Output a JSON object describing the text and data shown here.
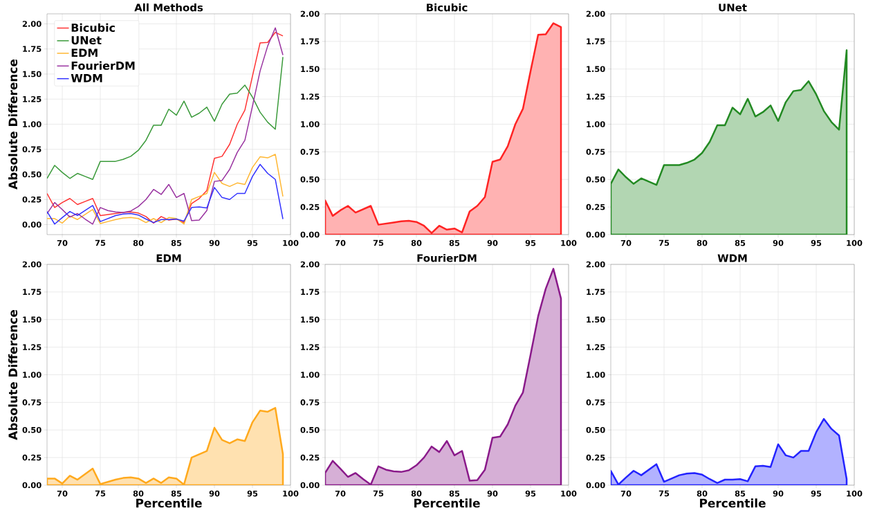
{
  "chart_data": [
    {
      "type": "line",
      "title": "All Methods",
      "ylabel": "Absolute Difference",
      "x": [
        68,
        69,
        70,
        71,
        72,
        73,
        74,
        75,
        76,
        77,
        78,
        79,
        80,
        81,
        82,
        83,
        84,
        85,
        86,
        87,
        88,
        89,
        90,
        91,
        92,
        93,
        94,
        95,
        96,
        97,
        98,
        99
      ],
      "xlim": [
        68,
        100
      ],
      "xticks": [
        70,
        75,
        80,
        85,
        90,
        95,
        100
      ],
      "ylim": [
        -0.1,
        2.1
      ],
      "yticks": [
        {
          "value": 0,
          "label": "0.00"
        },
        {
          "value": 0.25,
          "label": "0.25"
        },
        {
          "value": 0.5,
          "label": "0.50"
        },
        {
          "value": 0.75,
          "label": "0.75"
        },
        {
          "value": 1,
          "label": "1.00"
        },
        {
          "value": 1.25,
          "label": "1.25"
        },
        {
          "value": 1.5,
          "label": "1.50"
        },
        {
          "value": 1.75,
          "label": "1.75"
        },
        {
          "value": 2,
          "label": "2.00"
        }
      ],
      "grid": true,
      "legend": "top left",
      "series": [
        {
          "name": "Bicubic",
          "color": "#ff3333",
          "values": [
            0.31,
            0.17,
            0.22,
            0.26,
            0.2,
            0.23,
            0.26,
            0.09,
            0.1,
            0.11,
            0.12,
            0.125,
            0.115,
            0.08,
            0.015,
            0.08,
            0.045,
            0.055,
            0.02,
            0.21,
            0.26,
            0.34,
            0.66,
            0.68,
            0.8,
            1.0,
            1.14,
            1.48,
            1.81,
            1.815,
            1.915,
            1.88
          ]
        },
        {
          "name": "UNet",
          "color": "#3a9a3a",
          "values": [
            0.46,
            0.59,
            0.52,
            0.46,
            0.51,
            0.48,
            0.45,
            0.63,
            0.63,
            0.63,
            0.65,
            0.68,
            0.74,
            0.84,
            0.99,
            0.99,
            1.15,
            1.09,
            1.23,
            1.07,
            1.11,
            1.17,
            1.03,
            1.2,
            1.3,
            1.31,
            1.39,
            1.27,
            1.12,
            1.02,
            0.95,
            1.67
          ]
        },
        {
          "name": "EDM",
          "color": "#ffb733",
          "values": [
            0.06,
            0.06,
            0.015,
            0.085,
            0.05,
            0.1,
            0.15,
            0.01,
            0.03,
            0.05,
            0.065,
            0.07,
            0.06,
            0.02,
            0.06,
            0.02,
            0.07,
            0.06,
            0.005,
            0.25,
            0.28,
            0.31,
            0.52,
            0.41,
            0.38,
            0.415,
            0.4,
            0.57,
            0.675,
            0.665,
            0.7,
            0.28
          ]
        },
        {
          "name": "FourierDM",
          "color": "#9933a0",
          "values": [
            0.11,
            0.22,
            0.15,
            0.075,
            0.11,
            0.055,
            0.005,
            0.17,
            0.14,
            0.125,
            0.12,
            0.135,
            0.18,
            0.25,
            0.35,
            0.3,
            0.4,
            0.27,
            0.31,
            0.04,
            0.045,
            0.14,
            0.43,
            0.44,
            0.55,
            0.72,
            0.84,
            1.18,
            1.53,
            1.78,
            1.96,
            1.69
          ]
        },
        {
          "name": "WDM",
          "color": "#3333ff",
          "values": [
            0.13,
            0.005,
            0.07,
            0.13,
            0.09,
            0.14,
            0.19,
            0.03,
            0.06,
            0.09,
            0.105,
            0.11,
            0.095,
            0.055,
            0.02,
            0.05,
            0.05,
            0.055,
            0.035,
            0.17,
            0.175,
            0.165,
            0.37,
            0.27,
            0.25,
            0.31,
            0.31,
            0.48,
            0.6,
            0.51,
            0.45,
            0.055
          ]
        }
      ]
    },
    {
      "type": "area",
      "title": "Bicubic",
      "x": [
        68,
        69,
        70,
        71,
        72,
        73,
        74,
        75,
        76,
        77,
        78,
        79,
        80,
        81,
        82,
        83,
        84,
        85,
        86,
        87,
        88,
        89,
        90,
        91,
        92,
        93,
        94,
        95,
        96,
        97,
        98,
        99
      ],
      "xlim": [
        68,
        100
      ],
      "xticks": [
        70,
        75,
        80,
        85,
        90,
        95,
        100
      ],
      "ylim": [
        0,
        2
      ],
      "yticks": [
        {
          "value": 0,
          "label": "0.00"
        },
        {
          "value": 0.25,
          "label": "0.25"
        },
        {
          "value": 0.5,
          "label": "0.50"
        },
        {
          "value": 0.75,
          "label": "0.75"
        },
        {
          "value": 1,
          "label": "1.00"
        },
        {
          "value": 1.25,
          "label": "1.25"
        },
        {
          "value": 1.5,
          "label": "1.50"
        },
        {
          "value": 1.75,
          "label": "1.75"
        },
        {
          "value": 2,
          "label": "2.00"
        }
      ],
      "grid": true,
      "series": [
        {
          "color": "#ffb2b2",
          "values": [
            0.31,
            0.17,
            0.22,
            0.26,
            0.2,
            0.23,
            0.26,
            0.09,
            0.1,
            0.11,
            0.12,
            0.125,
            0.115,
            0.08,
            0.015,
            0.08,
            0.045,
            0.055,
            0.02,
            0.21,
            0.26,
            0.34,
            0.66,
            0.68,
            0.8,
            1.0,
            1.14,
            1.48,
            1.81,
            1.815,
            1.915,
            1.88
          ]
        }
      ]
    },
    {
      "type": "area",
      "title": "UNet",
      "x": [
        68,
        69,
        70,
        71,
        72,
        73,
        74,
        75,
        76,
        77,
        78,
        79,
        80,
        81,
        82,
        83,
        84,
        85,
        86,
        87,
        88,
        89,
        90,
        91,
        92,
        93,
        94,
        95,
        96,
        97,
        98,
        99
      ],
      "xlim": [
        68,
        100
      ],
      "xticks": [
        70,
        75,
        80,
        85,
        90,
        95,
        100
      ],
      "ylim": [
        0,
        2
      ],
      "yticks": [
        {
          "value": 0,
          "label": "0.00"
        },
        {
          "value": 0.25,
          "label": "0.25"
        },
        {
          "value": 0.5,
          "label": "0.50"
        },
        {
          "value": 0.75,
          "label": "0.75"
        },
        {
          "value": 1,
          "label": "1.00"
        },
        {
          "value": 1.25,
          "label": "1.25"
        },
        {
          "value": 1.5,
          "label": "1.50"
        },
        {
          "value": 1.75,
          "label": "1.75"
        },
        {
          "value": 2,
          "label": "2.00"
        }
      ],
      "grid": true,
      "series": [
        {
          "color": "#b2d6b2",
          "values": [
            0.46,
            0.59,
            0.52,
            0.46,
            0.51,
            0.48,
            0.45,
            0.63,
            0.63,
            0.63,
            0.65,
            0.68,
            0.74,
            0.84,
            0.99,
            0.99,
            1.15,
            1.09,
            1.23,
            1.07,
            1.11,
            1.17,
            1.03,
            1.2,
            1.3,
            1.31,
            1.39,
            1.27,
            1.12,
            1.02,
            0.95,
            1.67
          ]
        }
      ]
    },
    {
      "type": "area",
      "title": "EDM",
      "xlabel": "Percentile",
      "ylabel": "Absolute Difference",
      "x": [
        68,
        69,
        70,
        71,
        72,
        73,
        74,
        75,
        76,
        77,
        78,
        79,
        80,
        81,
        82,
        83,
        84,
        85,
        86,
        87,
        88,
        89,
        90,
        91,
        92,
        93,
        94,
        95,
        96,
        97,
        98,
        99
      ],
      "xlim": [
        68,
        100
      ],
      "xticks": [
        70,
        75,
        80,
        85,
        90,
        95,
        100
      ],
      "ylim": [
        0,
        2
      ],
      "yticks": [
        {
          "value": 0,
          "label": "0.00"
        },
        {
          "value": 0.25,
          "label": "0.25"
        },
        {
          "value": 0.5,
          "label": "0.50"
        },
        {
          "value": 0.75,
          "label": "0.75"
        },
        {
          "value": 1,
          "label": "1.00"
        },
        {
          "value": 1.25,
          "label": "1.25"
        },
        {
          "value": 1.5,
          "label": "1.50"
        },
        {
          "value": 1.75,
          "label": "1.75"
        },
        {
          "value": 2,
          "label": "2.00"
        }
      ],
      "grid": true,
      "series": [
        {
          "color": "#ffe1b0",
          "values": [
            0.06,
            0.06,
            0.015,
            0.085,
            0.05,
            0.1,
            0.15,
            0.01,
            0.03,
            0.05,
            0.065,
            0.07,
            0.06,
            0.02,
            0.06,
            0.02,
            0.07,
            0.06,
            0.005,
            0.25,
            0.28,
            0.31,
            0.52,
            0.41,
            0.38,
            0.415,
            0.4,
            0.57,
            0.675,
            0.665,
            0.7,
            0.28
          ]
        }
      ]
    },
    {
      "type": "area",
      "title": "FourierDM",
      "xlabel": "Percentile",
      "x": [
        68,
        69,
        70,
        71,
        72,
        73,
        74,
        75,
        76,
        77,
        78,
        79,
        80,
        81,
        82,
        83,
        84,
        85,
        86,
        87,
        88,
        89,
        90,
        91,
        92,
        93,
        94,
        95,
        96,
        97,
        98,
        99
      ],
      "xlim": [
        68,
        100
      ],
      "xticks": [
        70,
        75,
        80,
        85,
        90,
        95,
        100
      ],
      "ylim": [
        0,
        2
      ],
      "yticks": [
        {
          "value": 0,
          "label": "0.00"
        },
        {
          "value": 0.25,
          "label": "0.25"
        },
        {
          "value": 0.5,
          "label": "0.50"
        },
        {
          "value": 0.75,
          "label": "0.75"
        },
        {
          "value": 1,
          "label": "1.00"
        },
        {
          "value": 1.25,
          "label": "1.25"
        },
        {
          "value": 1.5,
          "label": "1.50"
        },
        {
          "value": 1.75,
          "label": "1.75"
        },
        {
          "value": 2,
          "label": "2.00"
        }
      ],
      "grid": true,
      "series": [
        {
          "color": "#d6afd6",
          "values": [
            0.11,
            0.22,
            0.15,
            0.075,
            0.11,
            0.055,
            0.005,
            0.17,
            0.14,
            0.125,
            0.12,
            0.135,
            0.18,
            0.25,
            0.35,
            0.3,
            0.4,
            0.27,
            0.31,
            0.04,
            0.045,
            0.14,
            0.43,
            0.44,
            0.55,
            0.72,
            0.84,
            1.18,
            1.53,
            1.78,
            1.96,
            1.69
          ]
        }
      ]
    },
    {
      "type": "area",
      "title": "WDM",
      "xlabel": "Percentile",
      "x": [
        68,
        69,
        70,
        71,
        72,
        73,
        74,
        75,
        76,
        77,
        78,
        79,
        80,
        81,
        82,
        83,
        84,
        85,
        86,
        87,
        88,
        89,
        90,
        91,
        92,
        93,
        94,
        95,
        96,
        97,
        98,
        99
      ],
      "xlim": [
        68,
        100
      ],
      "xticks": [
        70,
        75,
        80,
        85,
        90,
        95,
        100
      ],
      "ylim": [
        0,
        2
      ],
      "yticks": [
        {
          "value": 0,
          "label": "0.00"
        },
        {
          "value": 0.25,
          "label": "0.25"
        },
        {
          "value": 0.5,
          "label": "0.50"
        },
        {
          "value": 0.75,
          "label": "0.75"
        },
        {
          "value": 1,
          "label": "1.00"
        },
        {
          "value": 1.25,
          "label": "1.25"
        },
        {
          "value": 1.5,
          "label": "1.50"
        },
        {
          "value": 1.75,
          "label": "1.75"
        },
        {
          "value": 2,
          "label": "2.00"
        }
      ],
      "grid": true,
      "series": [
        {
          "color": "#b2b2ff",
          "values": [
            0.13,
            0.005,
            0.07,
            0.13,
            0.09,
            0.14,
            0.19,
            0.03,
            0.06,
            0.09,
            0.105,
            0.11,
            0.095,
            0.055,
            0.02,
            0.05,
            0.05,
            0.055,
            0.035,
            0.17,
            0.175,
            0.165,
            0.37,
            0.27,
            0.25,
            0.31,
            0.31,
            0.48,
            0.6,
            0.51,
            0.45,
            0.055
          ]
        }
      ]
    }
  ]
}
